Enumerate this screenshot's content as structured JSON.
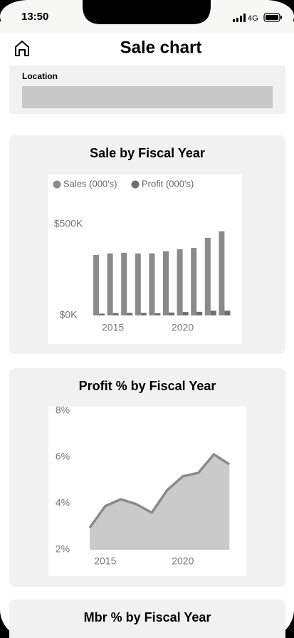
{
  "status": {
    "time": "13:50",
    "network": "4G"
  },
  "header": {
    "title": "Sale chart"
  },
  "filter": {
    "label": "Location"
  },
  "chart_data": [
    {
      "type": "bar",
      "title": "Sale by Fiscal Year",
      "x": [
        2014,
        2015,
        2016,
        2017,
        2018,
        2019,
        2020,
        2021,
        2022,
        2023
      ],
      "xticks": [
        2015,
        2020
      ],
      "series": [
        {
          "name": "Sales (000's)",
          "color": "#8a8a8a",
          "values": [
            332,
            340,
            344,
            340,
            340,
            352,
            363,
            371,
            426,
            461
          ]
        },
        {
          "name": "Profit (000's)",
          "color": "#6e6e6e",
          "values": [
            10,
            13,
            14,
            14,
            12,
            16,
            19,
            20,
            26,
            26
          ]
        }
      ],
      "ylim": [
        0,
        500
      ],
      "yticks": [
        {
          "value": 0,
          "label": "$0K"
        },
        {
          "value": 500,
          "label": "$500K"
        }
      ]
    },
    {
      "type": "area",
      "title": "Profit % by Fiscal Year",
      "x": [
        2014,
        2015,
        2016,
        2017,
        2018,
        2019,
        2020,
        2021,
        2022,
        2023
      ],
      "xticks": [
        2015,
        2020
      ],
      "values": [
        2.95,
        3.88,
        4.18,
        3.97,
        3.6,
        4.58,
        5.17,
        5.32,
        6.12,
        5.69
      ],
      "color": "#8a8a8a",
      "ylim": [
        2,
        8
      ],
      "yticks": [
        {
          "value": 2,
          "label": "2%"
        },
        {
          "value": 4,
          "label": "4%"
        },
        {
          "value": 6,
          "label": "6%"
        },
        {
          "value": 8,
          "label": "8%"
        }
      ]
    },
    {
      "type": "line",
      "title": "Mbr % by Fiscal Year"
    }
  ]
}
